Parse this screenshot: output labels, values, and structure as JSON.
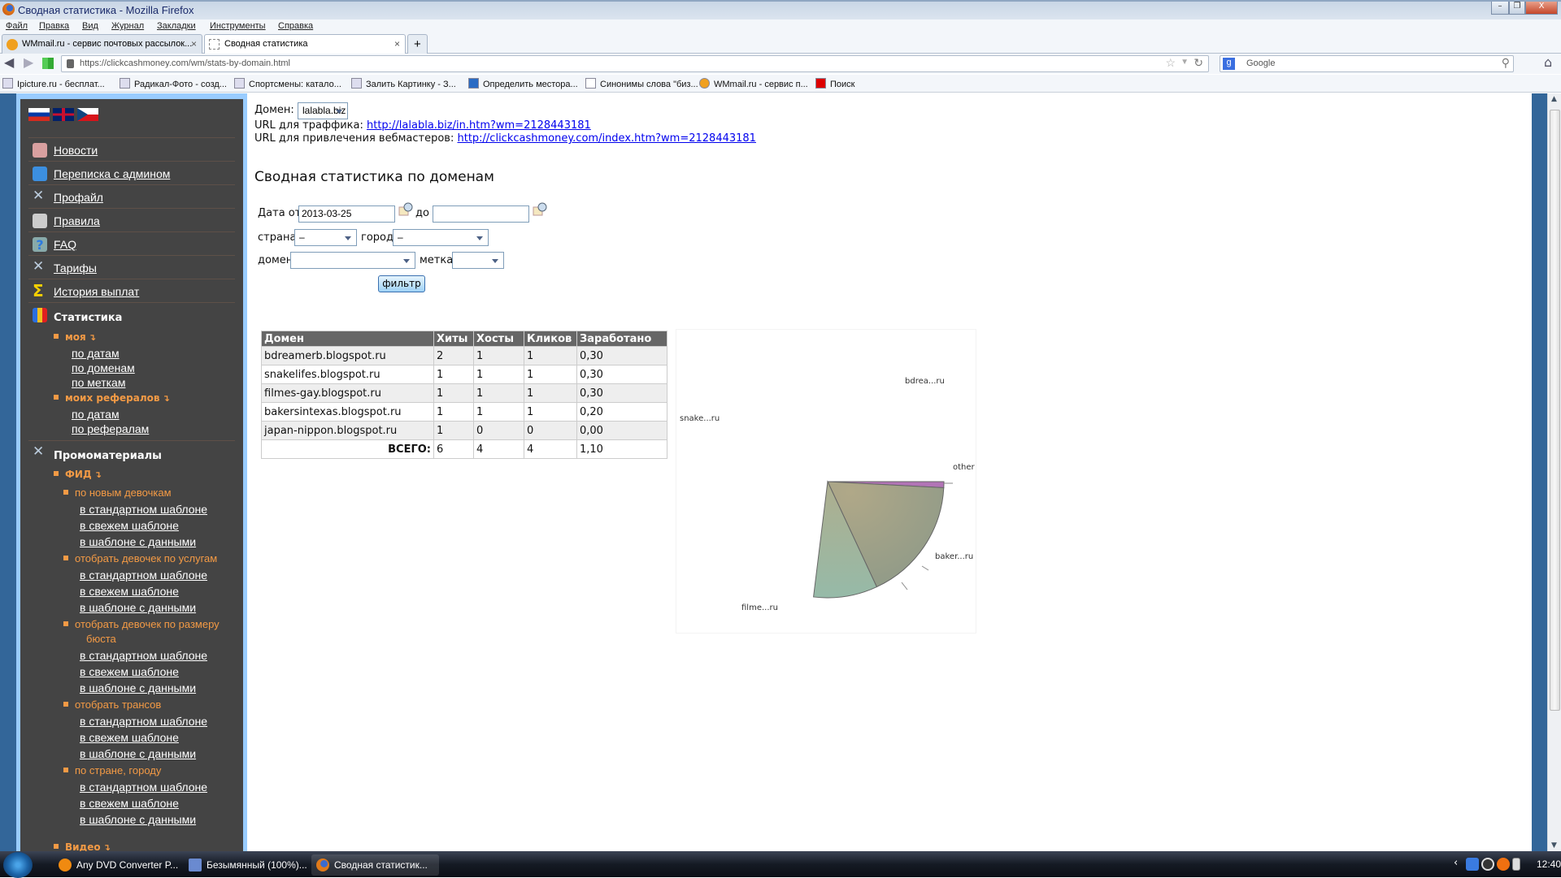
{
  "window": {
    "title": "Сводная статистика - Mozilla Firefox"
  },
  "menu": [
    "Файл",
    "Правка",
    "Вид",
    "Журнал",
    "Закладки",
    "Инструменты",
    "Справка"
  ],
  "tabs": [
    {
      "label": "WMmail.ru - сервис почтовых рассылок..."
    },
    {
      "label": "Сводная статистика",
      "active": true
    }
  ],
  "nav": {
    "url": "https://clickcashmoney.com/wm/stats-by-domain.html",
    "search_placeholder": "Google"
  },
  "bookmarks": [
    "Ipicture.ru - бесплат...",
    "Радикал-Фото - созд...",
    "Спортсмены: катало...",
    "Залить Картинку - З...",
    "Определить местора...",
    "Синонимы слова \"биз...",
    "WMmail.ru - сервис п...",
    "Поиск"
  ],
  "sidebar": {
    "flags": [
      "russian-flag",
      "uk-flag",
      "czech-flag"
    ],
    "items": [
      {
        "label": "Новости",
        "icon": "news-icon"
      },
      {
        "label": "Переписка с админом",
        "icon": "mail-icon"
      },
      {
        "label": "Профайл",
        "icon": "tools-icon"
      },
      {
        "label": "Правила",
        "icon": "rules-icon"
      },
      {
        "label": "FAQ",
        "icon": "faq-icon"
      },
      {
        "label": "Тарифы",
        "icon": "tools-icon"
      },
      {
        "label": "История выплат",
        "icon": "sigma-icon"
      }
    ],
    "stats": {
      "title": "Статистика",
      "mine": "моя",
      "mine_links": [
        "по датам",
        "по доменам",
        "по меткам"
      ],
      "refs": "моих рефералов",
      "refs_links": [
        "по датам",
        "по рефералам"
      ]
    },
    "promo": {
      "title": "Промоматериалы",
      "feed": "ФИД",
      "groups": [
        {
          "label": "по новым девочкам",
          "links": [
            "в стандартном шаблоне",
            "в свежем шаблоне",
            "в шаблоне с данными"
          ]
        },
        {
          "label": "отобрать девочек по услугам",
          "links": [
            "в стандартном шаблоне",
            "в свежем шаблоне",
            "в шаблоне с данными"
          ]
        },
        {
          "label": "отобрать девочек по размеру",
          "label2": "бюста",
          "links": [
            "в стандартном шаблоне",
            "в свежем шаблоне",
            "в шаблоне с данными"
          ]
        },
        {
          "label": "отобрать трансов",
          "links": [
            "в стандартном шаблоне",
            "в свежем шаблоне",
            "в шаблоне с данными"
          ]
        },
        {
          "label": "по стране, городу",
          "links": [
            "в стандартном шаблоне",
            "в свежем шаблоне",
            "в шаблоне с данными"
          ]
        }
      ],
      "video": "Видео"
    }
  },
  "main": {
    "domain_label": "Домен:",
    "domain_value": "lalabla.biz",
    "traffic_label": "URL для траффика:",
    "traffic_url": "http://lalabla.biz/in.htm?wm=2128443181",
    "wm_label": "URL для привлечения вебмастеров:",
    "wm_url": "http://clickcashmoney.com/index.htm?wm=2128443181",
    "heading": "Сводная статистика по доменам",
    "filter": {
      "date_from_label": "Дата от",
      "date_from": "2013-03-25",
      "date_to_label": "до",
      "date_to": "",
      "country_label": "страна",
      "country": "–",
      "city_label": "город",
      "city": "–",
      "domain_label": "домен",
      "domain": "",
      "tag_label": "метка",
      "tag": "",
      "button": "фильтр"
    },
    "table": {
      "headers": [
        "Домен",
        "Хиты",
        "Хосты",
        "Кликов",
        "Заработано"
      ],
      "rows": [
        [
          "bdreamerb.blogspot.ru",
          "2",
          "1",
          "1",
          "0,30"
        ],
        [
          "snakelifes.blogspot.ru",
          "1",
          "1",
          "1",
          "0,30"
        ],
        [
          "filmes-gay.blogspot.ru",
          "1",
          "1",
          "1",
          "0,30"
        ],
        [
          "bakersintexas.blogspot.ru",
          "1",
          "1",
          "1",
          "0,20"
        ],
        [
          "japan-nippon.blogspot.ru",
          "1",
          "0",
          "0",
          "0,00"
        ]
      ],
      "total": {
        "label": "ВСЕГО:",
        "values": [
          "6",
          "4",
          "4",
          "1,10"
        ]
      }
    }
  },
  "chart_data": {
    "type": "pie",
    "labels": [
      "bdrea...ru",
      "snake...ru",
      "filme...ru",
      "baker...ru",
      "other"
    ],
    "colors": {
      "other": "#b274b6",
      "baker": "#9a9c88",
      "filmes": "#9fb8a2"
    }
  },
  "taskbar": {
    "items": [
      "Any DVD Converter P...",
      "Безымянный (100%)...",
      "Сводная статистик..."
    ],
    "clock": "12:40"
  }
}
